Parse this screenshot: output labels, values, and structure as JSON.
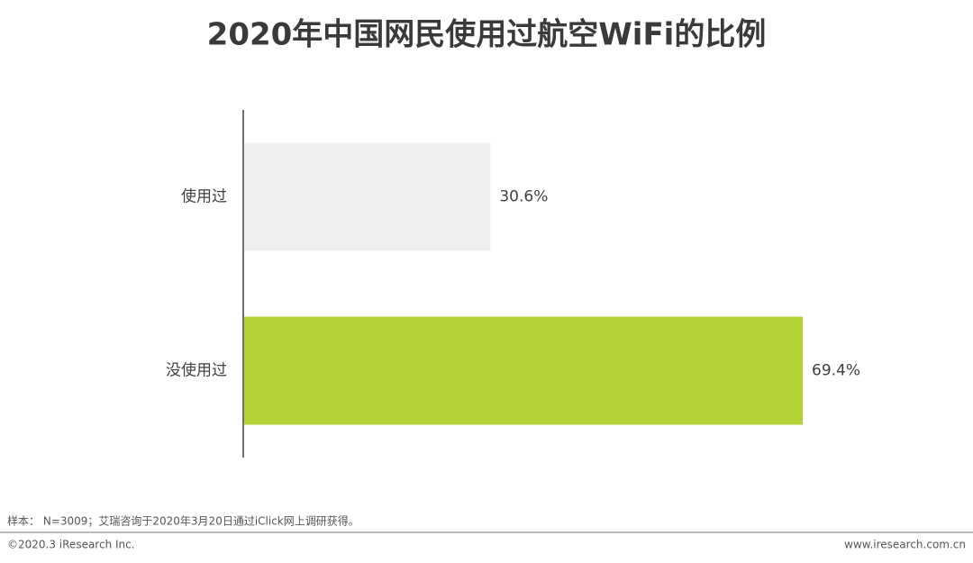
{
  "chart_data": {
    "type": "hbar",
    "title": "2020年中国网民使用过航空WiFi的比例",
    "categories": [
      "使用过",
      "没使用过"
    ],
    "values": [
      30.6,
      69.4
    ],
    "value_labels": [
      "30.6%",
      "69.4%"
    ],
    "colors": [
      "#f0f0f0",
      "#b2d235"
    ]
  },
  "footer": {
    "note": "样本： N=3009；艾瑞咨询于2020年3月20日通过iClick网上调研获得。",
    "copyright": "©2020.3 iResearch Inc.",
    "url": "www.iresearch.com.cn"
  }
}
